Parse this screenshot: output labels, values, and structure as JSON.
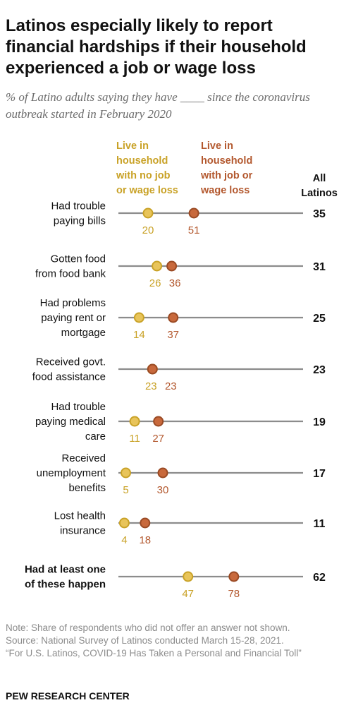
{
  "header": {
    "title": "Latinos especially likely to report financial hardships if their household experienced a job or wage loss",
    "subtitle": "% of Latino adults saying they have ____ since the coronavirus outbreak started in February 2020"
  },
  "footer": {
    "note": "Note: Share of respondents who did not offer an answer not shown.",
    "source": "Source: National Survey of Latinos conducted March 15-28, 2021.",
    "report": "“For U.S. Latinos, COVID-19 Has Taken a Personal and Financial Toll”",
    "brand": "PEW RESEARCH CENTER"
  },
  "chart_data": {
    "type": "scatter",
    "subtype": "dot-plot",
    "categories": [
      [
        "Had trouble",
        "paying bills"
      ],
      [
        "Gotten food",
        "from food bank"
      ],
      [
        "Had problems",
        "paying rent or",
        "mortgage"
      ],
      [
        "Received govt.",
        "food assistance"
      ],
      [
        "Had trouble",
        "paying medical",
        "care"
      ],
      [
        "Received",
        "unemployment",
        "benefits"
      ],
      [
        "Lost health",
        "insurance"
      ],
      [
        "Had at least one",
        "of these happen"
      ]
    ],
    "bold_categories": [
      7
    ],
    "series": [
      {
        "name": [
          "Live in",
          "household",
          "with no job",
          "or wage loss"
        ],
        "color": "#e8c45a",
        "stroke": "#c9a227",
        "text_color": "#c9a227",
        "values": [
          20,
          26,
          14,
          23,
          11,
          5,
          4,
          47
        ]
      },
      {
        "name": [
          "Live in",
          "household",
          "with job or",
          "wage loss"
        ],
        "color": "#c8693c",
        "stroke": "#9a4a24",
        "text_color": "#b3582e",
        "values": [
          51,
          36,
          37,
          23,
          27,
          30,
          18,
          78
        ]
      }
    ],
    "total": {
      "name": [
        "All",
        "Latinos"
      ],
      "values": [
        35,
        31,
        25,
        23,
        19,
        17,
        11,
        62
      ]
    },
    "xlim": [
      0,
      100
    ],
    "grid": false,
    "line_color": "#8c8c8c"
  }
}
